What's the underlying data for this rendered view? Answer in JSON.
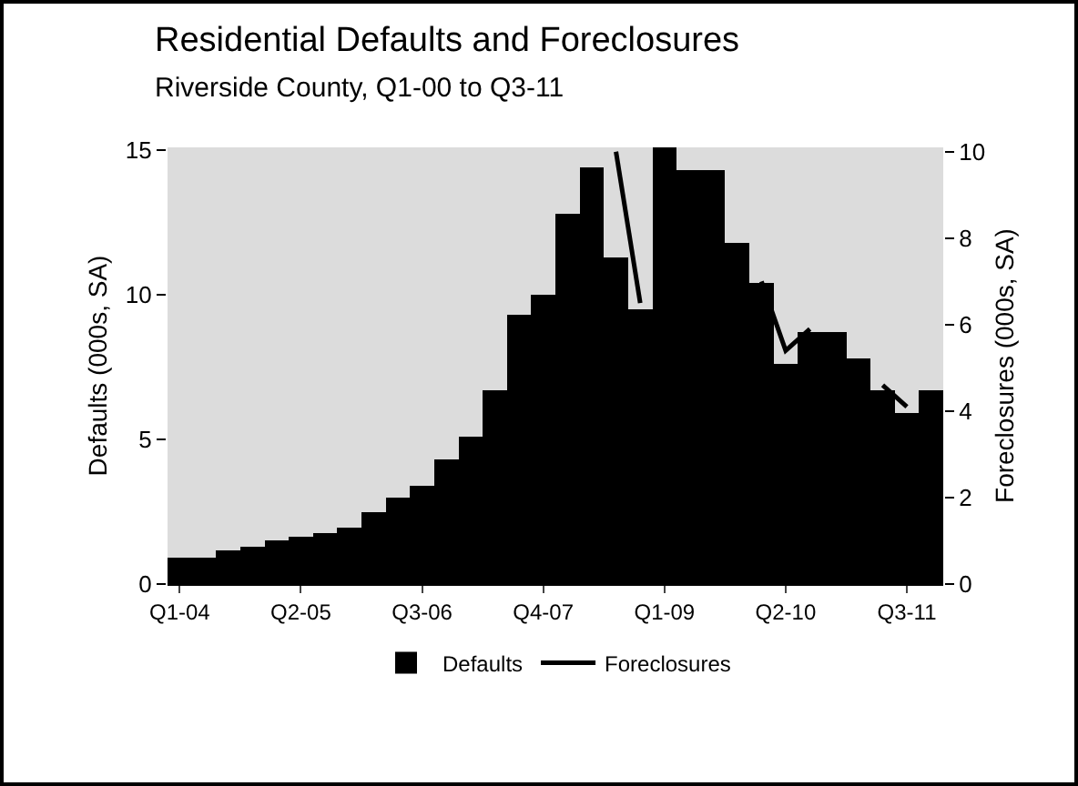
{
  "chart_data": {
    "type": "bar",
    "title": "Residential Defaults and Foreclosures",
    "subtitle": "Riverside County, Q1-00 to Q3-11",
    "ylabel": "Defaults (000s, SA)",
    "y2label": "Foreclosures (000s, SA)",
    "categories": [
      "Q1-04",
      null,
      null,
      null,
      null,
      "Q2-05",
      null,
      null,
      null,
      null,
      "Q3-06",
      null,
      null,
      null,
      null,
      "Q4-07",
      null,
      null,
      null,
      null,
      "Q1-09",
      null,
      null,
      null,
      null,
      "Q2-10",
      null,
      null,
      null,
      null,
      "Q3-11",
      null
    ],
    "series": [
      {
        "name": "Defaults",
        "color": "#000000",
        "values": [
          0.9,
          0.9,
          1.15,
          1.3,
          1.5,
          1.65,
          1.75,
          1.95,
          2.5,
          3.0,
          3.4,
          4.3,
          5.1,
          6.7,
          9.3,
          10.0,
          12.8,
          14.4,
          11.3,
          9.5,
          15.1,
          14.3,
          14.3,
          11.8,
          10.4,
          7.6,
          8.7,
          8.7,
          7.8,
          6.7,
          5.9,
          6.7
        ]
      },
      {
        "name": "Foreclosures",
        "type": "line",
        "axis": "y2",
        "color": "#000000",
        "values": [
          null,
          null,
          null,
          null,
          null,
          null,
          null,
          null,
          null,
          null,
          null,
          null,
          null,
          null,
          null,
          null,
          null,
          null,
          10.0,
          6.5,
          null,
          null,
          null,
          null,
          7.0,
          5.4,
          5.9,
          null,
          null,
          4.6,
          4.1,
          null
        ]
      }
    ],
    "ylim": [
      0,
      15.1
    ],
    "yticks": [
      0,
      5,
      10,
      15
    ],
    "y2lim": [
      0,
      10.1
    ],
    "y2ticks": [
      0,
      2,
      4,
      6,
      8,
      10
    ],
    "grid": false,
    "legend": "bottom",
    "line_style": "solid",
    "marker": "none"
  }
}
